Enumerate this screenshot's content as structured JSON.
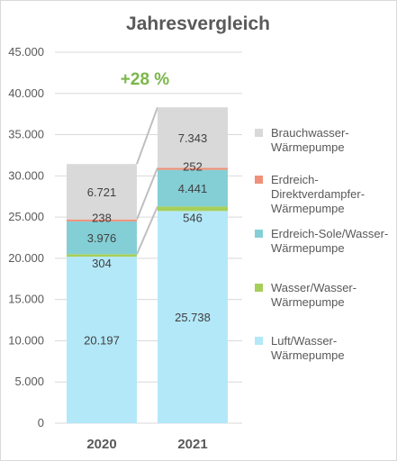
{
  "chart_data": {
    "type": "bar",
    "stacked": true,
    "title": "Jahresvergleich",
    "categories": [
      "2020",
      "2021"
    ],
    "ylim": [
      0,
      45000
    ],
    "yticks": [
      "0",
      "5.000",
      "10.000",
      "15.000",
      "20.000",
      "25.000",
      "30.000",
      "35.000",
      "40.000",
      "45.000"
    ],
    "ytick_values": [
      0,
      5000,
      10000,
      15000,
      20000,
      25000,
      30000,
      35000,
      40000,
      45000
    ],
    "grid": true,
    "legend_position": "right",
    "annotation": "+28 %",
    "series": [
      {
        "name": "Luft/Wasser-Wärmepumpe",
        "legend_lines": [
          "Luft/Wasser-",
          "Wärmepumpe"
        ],
        "color": "#b3e8f8",
        "values": [
          20197,
          25738
        ],
        "labels": [
          "20.197",
          "25.738"
        ]
      },
      {
        "name": "Wasser/Wasser-Wärmepumpe",
        "legend_lines": [
          "Wasser/Wasser-",
          "Wärmepumpe"
        ],
        "color": "#a6cf5a",
        "values": [
          304,
          546
        ],
        "labels": [
          "304",
          "546"
        ]
      },
      {
        "name": "Erdreich-Sole/Wasser-Wärmepumpe",
        "legend_lines": [
          "Erdreich-Sole/Wasser-",
          "Wärmepumpe"
        ],
        "color": "#84cfd6",
        "values": [
          3976,
          4441
        ],
        "labels": [
          "3.976",
          "4.441"
        ]
      },
      {
        "name": "Erdreich-Direktverdampfer-Wärmepumpe",
        "legend_lines": [
          "Erdreich-",
          "Direktverdampfer-",
          "Wärmepumpe"
        ],
        "color": "#ee9178",
        "values": [
          238,
          252
        ],
        "labels": [
          "238",
          "252"
        ]
      },
      {
        "name": "Brauchwasser-Wärmepumpe",
        "legend_lines": [
          "Brauchwasser-",
          "Wärmepumpe"
        ],
        "color": "#d9d9d9",
        "values": [
          6721,
          7343
        ],
        "labels": [
          "6.721",
          "7.343"
        ]
      }
    ],
    "colors": {
      "connector": "#bfbfbf",
      "annotation": "#7ab648",
      "gridline": "#d9d9d9",
      "text": "#595959"
    }
  }
}
